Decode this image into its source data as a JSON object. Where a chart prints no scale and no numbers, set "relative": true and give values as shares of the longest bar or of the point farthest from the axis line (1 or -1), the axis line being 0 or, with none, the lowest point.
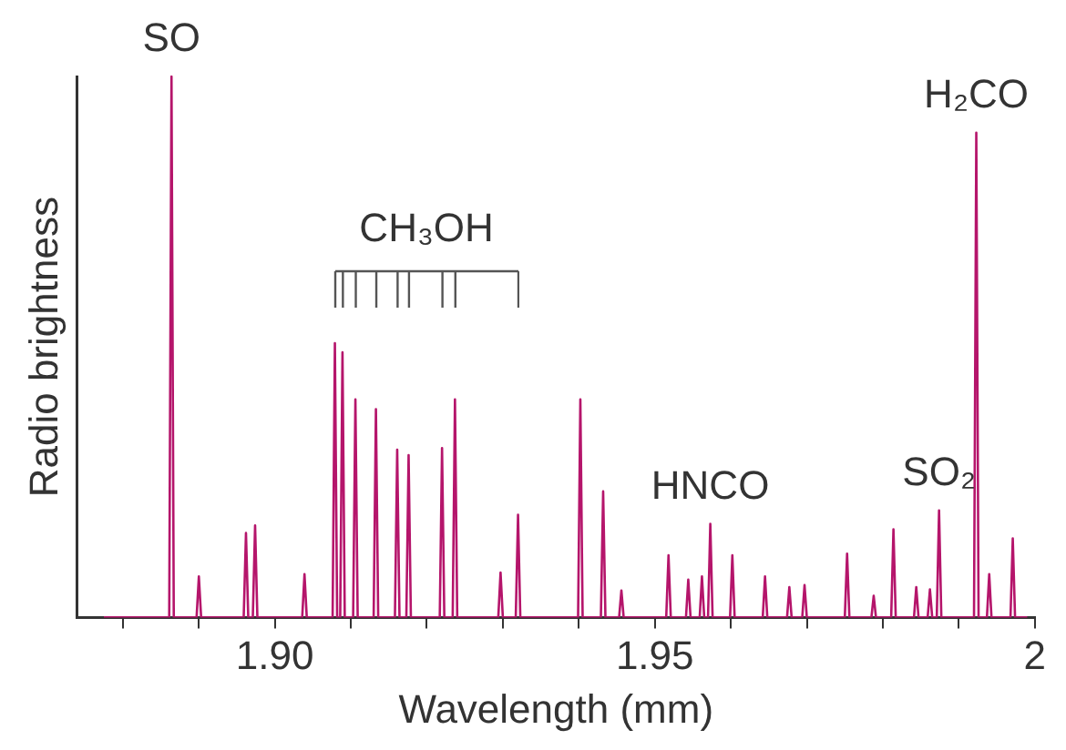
{
  "chart_data": {
    "type": "line",
    "relative": true,
    "xlabel": "Wavelength (mm)",
    "ylabel": "Radio brightness",
    "xlim": [
      1.874,
      2.0
    ],
    "xticks": [
      {
        "value": 1.88,
        "label": null
      },
      {
        "value": 1.89,
        "label": null
      },
      {
        "value": 1.9,
        "label": "1.90"
      },
      {
        "value": 1.91,
        "label": null
      },
      {
        "value": 1.92,
        "label": null
      },
      {
        "value": 1.93,
        "label": null
      },
      {
        "value": 1.94,
        "label": null
      },
      {
        "value": 1.95,
        "label": "1.95"
      },
      {
        "value": 1.96,
        "label": null
      },
      {
        "value": 1.97,
        "label": null
      },
      {
        "value": 1.98,
        "label": null
      },
      {
        "value": 1.99,
        "label": null
      },
      {
        "value": 2.0,
        "label": "2"
      }
    ],
    "grid": false,
    "legend": false,
    "marker": "none",
    "line_style": "solid",
    "annotations": [
      {
        "text": "SO",
        "x": 1.8864,
        "y": 1.0
      },
      "CH₃OH",
      {
        "text": "HNCO",
        "x": 1.9573,
        "y": 0.173
      },
      {
        "text": "SO₂",
        "x": 1.9874,
        "y": 0.198
      },
      {
        "text": "H₂CO",
        "x": 1.9923,
        "y": 0.896
      }
    ],
    "series": [
      {
        "color": "#b5156b",
        "x": [
          1.8775,
          1.8861,
          1.8864,
          1.8867,
          1.8897,
          1.89,
          1.8903,
          1.8959,
          1.8962,
          1.8965,
          1.8971,
          1.8974,
          1.8977,
          1.9036,
          1.9039,
          1.9042,
          1.9076,
          1.9079,
          1.9082,
          1.9086,
          1.9089,
          1.9092,
          1.9103,
          1.9106,
          1.9109,
          1.913,
          1.9133,
          1.9136,
          1.9158,
          1.9161,
          1.9164,
          1.9173,
          1.9176,
          1.9179,
          1.9217,
          1.922,
          1.9223,
          1.9234,
          1.9237,
          1.924,
          1.9294,
          1.9297,
          1.93,
          1.9317,
          1.932,
          1.9323,
          1.9399,
          1.9402,
          1.9405,
          1.9429,
          1.9432,
          1.9435,
          1.9453,
          1.9456,
          1.9459,
          1.9515,
          1.9518,
          1.9521,
          1.9541,
          1.9544,
          1.9547,
          1.9559,
          1.9562,
          1.9565,
          1.957,
          1.9573,
          1.9576,
          1.9599,
          1.9602,
          1.9605,
          1.9642,
          1.9645,
          1.9648,
          1.9674,
          1.9677,
          1.968,
          1.9694,
          1.9697,
          1.97,
          1.975,
          1.9753,
          1.9756,
          1.9785,
          1.9788,
          1.9791,
          1.9811,
          1.9814,
          1.9817,
          1.9841,
          1.9844,
          1.9847,
          1.9859,
          1.9862,
          1.9865,
          1.9871,
          1.9874,
          1.9877,
          1.992,
          1.9923,
          1.9926,
          1.9937,
          1.994,
          1.9943,
          1.9968,
          1.9971,
          1.9974,
          1.999
        ],
        "values": [
          0,
          0,
          1.0,
          0,
          0,
          0.076,
          0,
          0,
          0.156,
          0,
          0,
          0.17,
          0,
          0,
          0.08,
          0,
          0,
          0.507,
          0,
          0,
          0.49,
          0,
          0,
          0.403,
          0,
          0,
          0.385,
          0,
          0,
          0.31,
          0,
          0,
          0.3,
          0,
          0,
          0.313,
          0,
          0,
          0.403,
          0,
          0,
          0.083,
          0,
          0,
          0.19,
          0,
          0,
          0.403,
          0,
          0,
          0.233,
          0,
          0,
          0.05,
          0,
          0,
          0.115,
          0,
          0,
          0.07,
          0,
          0,
          0.076,
          0,
          0,
          0.173,
          0,
          0,
          0.115,
          0,
          0,
          0.076,
          0,
          0,
          0.056,
          0,
          0,
          0.06,
          0,
          0,
          0.118,
          0,
          0,
          0.04,
          0,
          0,
          0.163,
          0,
          0,
          0.056,
          0,
          0,
          0.052,
          0,
          0,
          0.198,
          0,
          0,
          0.896,
          0,
          0,
          0.08,
          0,
          0,
          0.146,
          0,
          0
        ]
      }
    ]
  }
}
